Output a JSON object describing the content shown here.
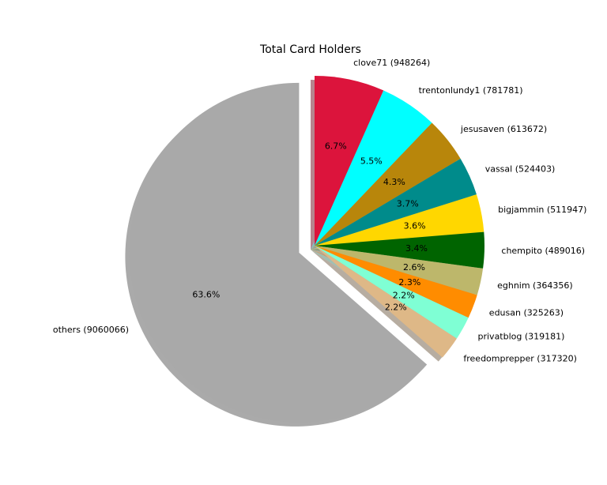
{
  "chart_data": {
    "type": "pie",
    "title": "Total Card Holders",
    "categories": [
      "clove71 (948264)",
      "trentonlundy1 (781781)",
      "jesusaven (613672)",
      "vassal (524403)",
      "bigjammin (511947)",
      "chempito (489016)",
      "eghnim (364356)",
      "edusan (325263)",
      "privatblog (319181)",
      "freedomprepper (317320)",
      "others (9060066)"
    ],
    "values": [
      948264,
      781781,
      613672,
      524403,
      511947,
      489016,
      364356,
      325263,
      319181,
      317320,
      9060066
    ],
    "percent_labels": [
      "6.7%",
      "5.5%",
      "4.3%",
      "3.7%",
      "3.6%",
      "3.4%",
      "2.6%",
      "2.3%",
      "2.2%",
      "2.2%",
      "63.6%"
    ],
    "colors": [
      "#dc143c",
      "#00ffff",
      "#b8860b",
      "#008b8b",
      "#ffd700",
      "#006400",
      "#bdb76b",
      "#ff8c00",
      "#7fffd4",
      "#deb887",
      "#a9a9a9"
    ],
    "exploded": [
      "others (9060066)"
    ],
    "start_angle_deg": 90,
    "direction": "clockwise",
    "shadow": true,
    "legend": "none"
  }
}
